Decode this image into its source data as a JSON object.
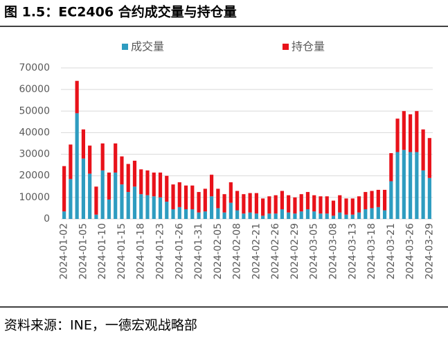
{
  "header": {
    "title": "图 1.5：EC2406 合约成交量与持仓量"
  },
  "chart_data": {
    "type": "stacked-bar",
    "categories": [
      "2024-01-02",
      null,
      null,
      "2024-01-05",
      null,
      null,
      "2024-01-10",
      null,
      null,
      "2024-01-15",
      null,
      null,
      "2024-01-18",
      null,
      null,
      "2024-01-23",
      null,
      null,
      "2024-01-26",
      null,
      null,
      "2024-01-31",
      null,
      null,
      "2024-02-05",
      null,
      null,
      "2024-02-08",
      null,
      null,
      "2024-02-21",
      null,
      null,
      "2024-02-26",
      null,
      null,
      "2024-02-29",
      null,
      null,
      "2024-03-05",
      null,
      null,
      "2024-03-08",
      null,
      null,
      "2024-03-13",
      null,
      null,
      "2024-03-18",
      null,
      null,
      "2024-03-21",
      null,
      null,
      "2024-03-26",
      null,
      null,
      "2024-03-29"
    ],
    "series": [
      {
        "name": "成交量",
        "color": "#2e9cc0",
        "values": [
          3500,
          18500,
          49000,
          28000,
          21000,
          2000,
          22500,
          9000,
          21500,
          16000,
          12500,
          15000,
          11500,
          11000,
          10500,
          10000,
          8000,
          4500,
          5500,
          4500,
          4500,
          3000,
          3500,
          10500,
          5000,
          3000,
          7500,
          4000,
          2500,
          3000,
          2500,
          1500,
          2500,
          2500,
          4500,
          3000,
          2500,
          3500,
          4500,
          3500,
          2500,
          2500,
          1500,
          3000,
          2000,
          2000,
          3000,
          4500,
          5000,
          5500,
          4000,
          17500,
          31000,
          32000,
          31000,
          31000,
          22500,
          19000
        ]
      },
      {
        "name": "持仓量",
        "color": "#e8121a",
        "values": [
          21000,
          16000,
          15000,
          13500,
          13000,
          13000,
          12500,
          12500,
          13500,
          13000,
          13000,
          12000,
          11500,
          11500,
          11000,
          11500,
          12000,
          11500,
          11500,
          11000,
          11000,
          9500,
          10500,
          10000,
          9000,
          8500,
          9500,
          9000,
          9000,
          9000,
          9500,
          8000,
          8000,
          8500,
          8500,
          8000,
          7500,
          8000,
          8000,
          7500,
          8000,
          8000,
          7000,
          8000,
          7500,
          7500,
          7500,
          8000,
          8000,
          8000,
          9500,
          13000,
          15500,
          18000,
          17500,
          19000,
          19000,
          18500
        ]
      }
    ],
    "ylim": [
      0,
      70000
    ],
    "yticks": [
      0,
      10000,
      20000,
      30000,
      40000,
      50000,
      60000,
      70000
    ],
    "grid": true,
    "legend": "top"
  },
  "footer": {
    "source": "资料来源：INE，一德宏观战略部"
  }
}
